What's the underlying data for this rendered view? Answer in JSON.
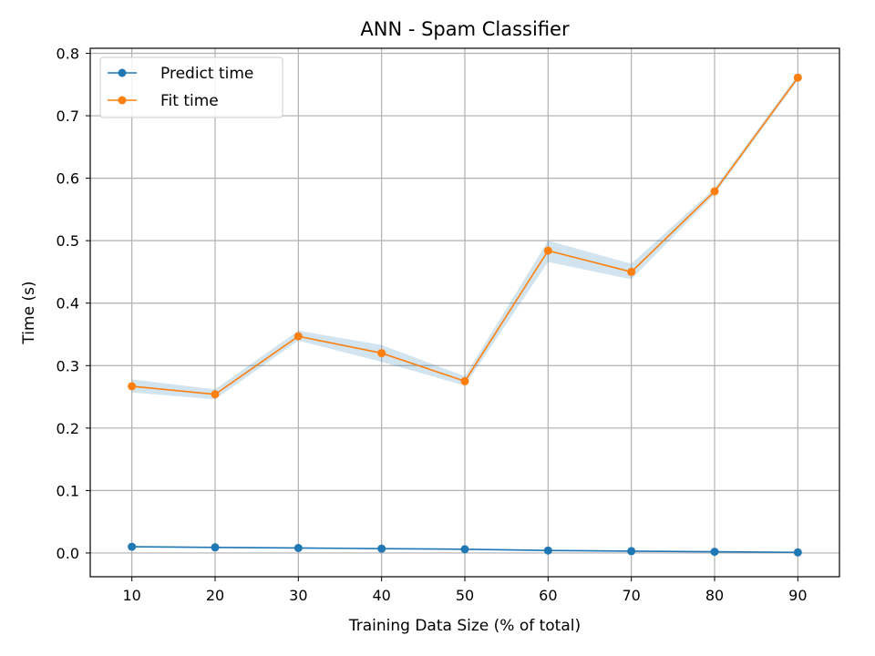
{
  "chart_data": {
    "type": "line",
    "title": "ANN - Spam Classifier",
    "xlabel": "Training Data Size (% of total)",
    "ylabel": "Time (s)",
    "x": [
      10,
      20,
      30,
      40,
      50,
      60,
      70,
      80,
      90
    ],
    "xlim": [
      5,
      95
    ],
    "ylim": [
      -0.038,
      0.808
    ],
    "xticks": [
      "10",
      "20",
      "30",
      "40",
      "50",
      "60",
      "70",
      "80",
      "90"
    ],
    "yticks": [
      "0.0",
      "0.1",
      "0.2",
      "0.3",
      "0.4",
      "0.5",
      "0.6",
      "0.7",
      "0.8"
    ],
    "grid": true,
    "legend_position": "top-left",
    "series": [
      {
        "name": "Predict time",
        "color": "#1f77b4",
        "values": [
          0.01,
          0.009,
          0.008,
          0.007,
          0.006,
          0.004,
          0.003,
          0.002,
          0.001
        ],
        "band_lower": [
          0.009,
          0.008,
          0.007,
          0.006,
          0.005,
          0.003,
          0.002,
          0.001,
          0.0005
        ],
        "band_upper": [
          0.011,
          0.01,
          0.009,
          0.008,
          0.007,
          0.005,
          0.004,
          0.003,
          0.0015
        ]
      },
      {
        "name": "Fit time",
        "color": "#ff7f0e",
        "values": [
          0.267,
          0.254,
          0.347,
          0.32,
          0.275,
          0.484,
          0.45,
          0.579,
          0.761
        ],
        "band_lower": [
          0.257,
          0.246,
          0.34,
          0.306,
          0.268,
          0.466,
          0.438,
          0.574,
          0.757
        ],
        "band_upper": [
          0.278,
          0.262,
          0.356,
          0.333,
          0.283,
          0.5,
          0.463,
          0.584,
          0.766
        ]
      }
    ],
    "band_color": "#1f77b4"
  }
}
